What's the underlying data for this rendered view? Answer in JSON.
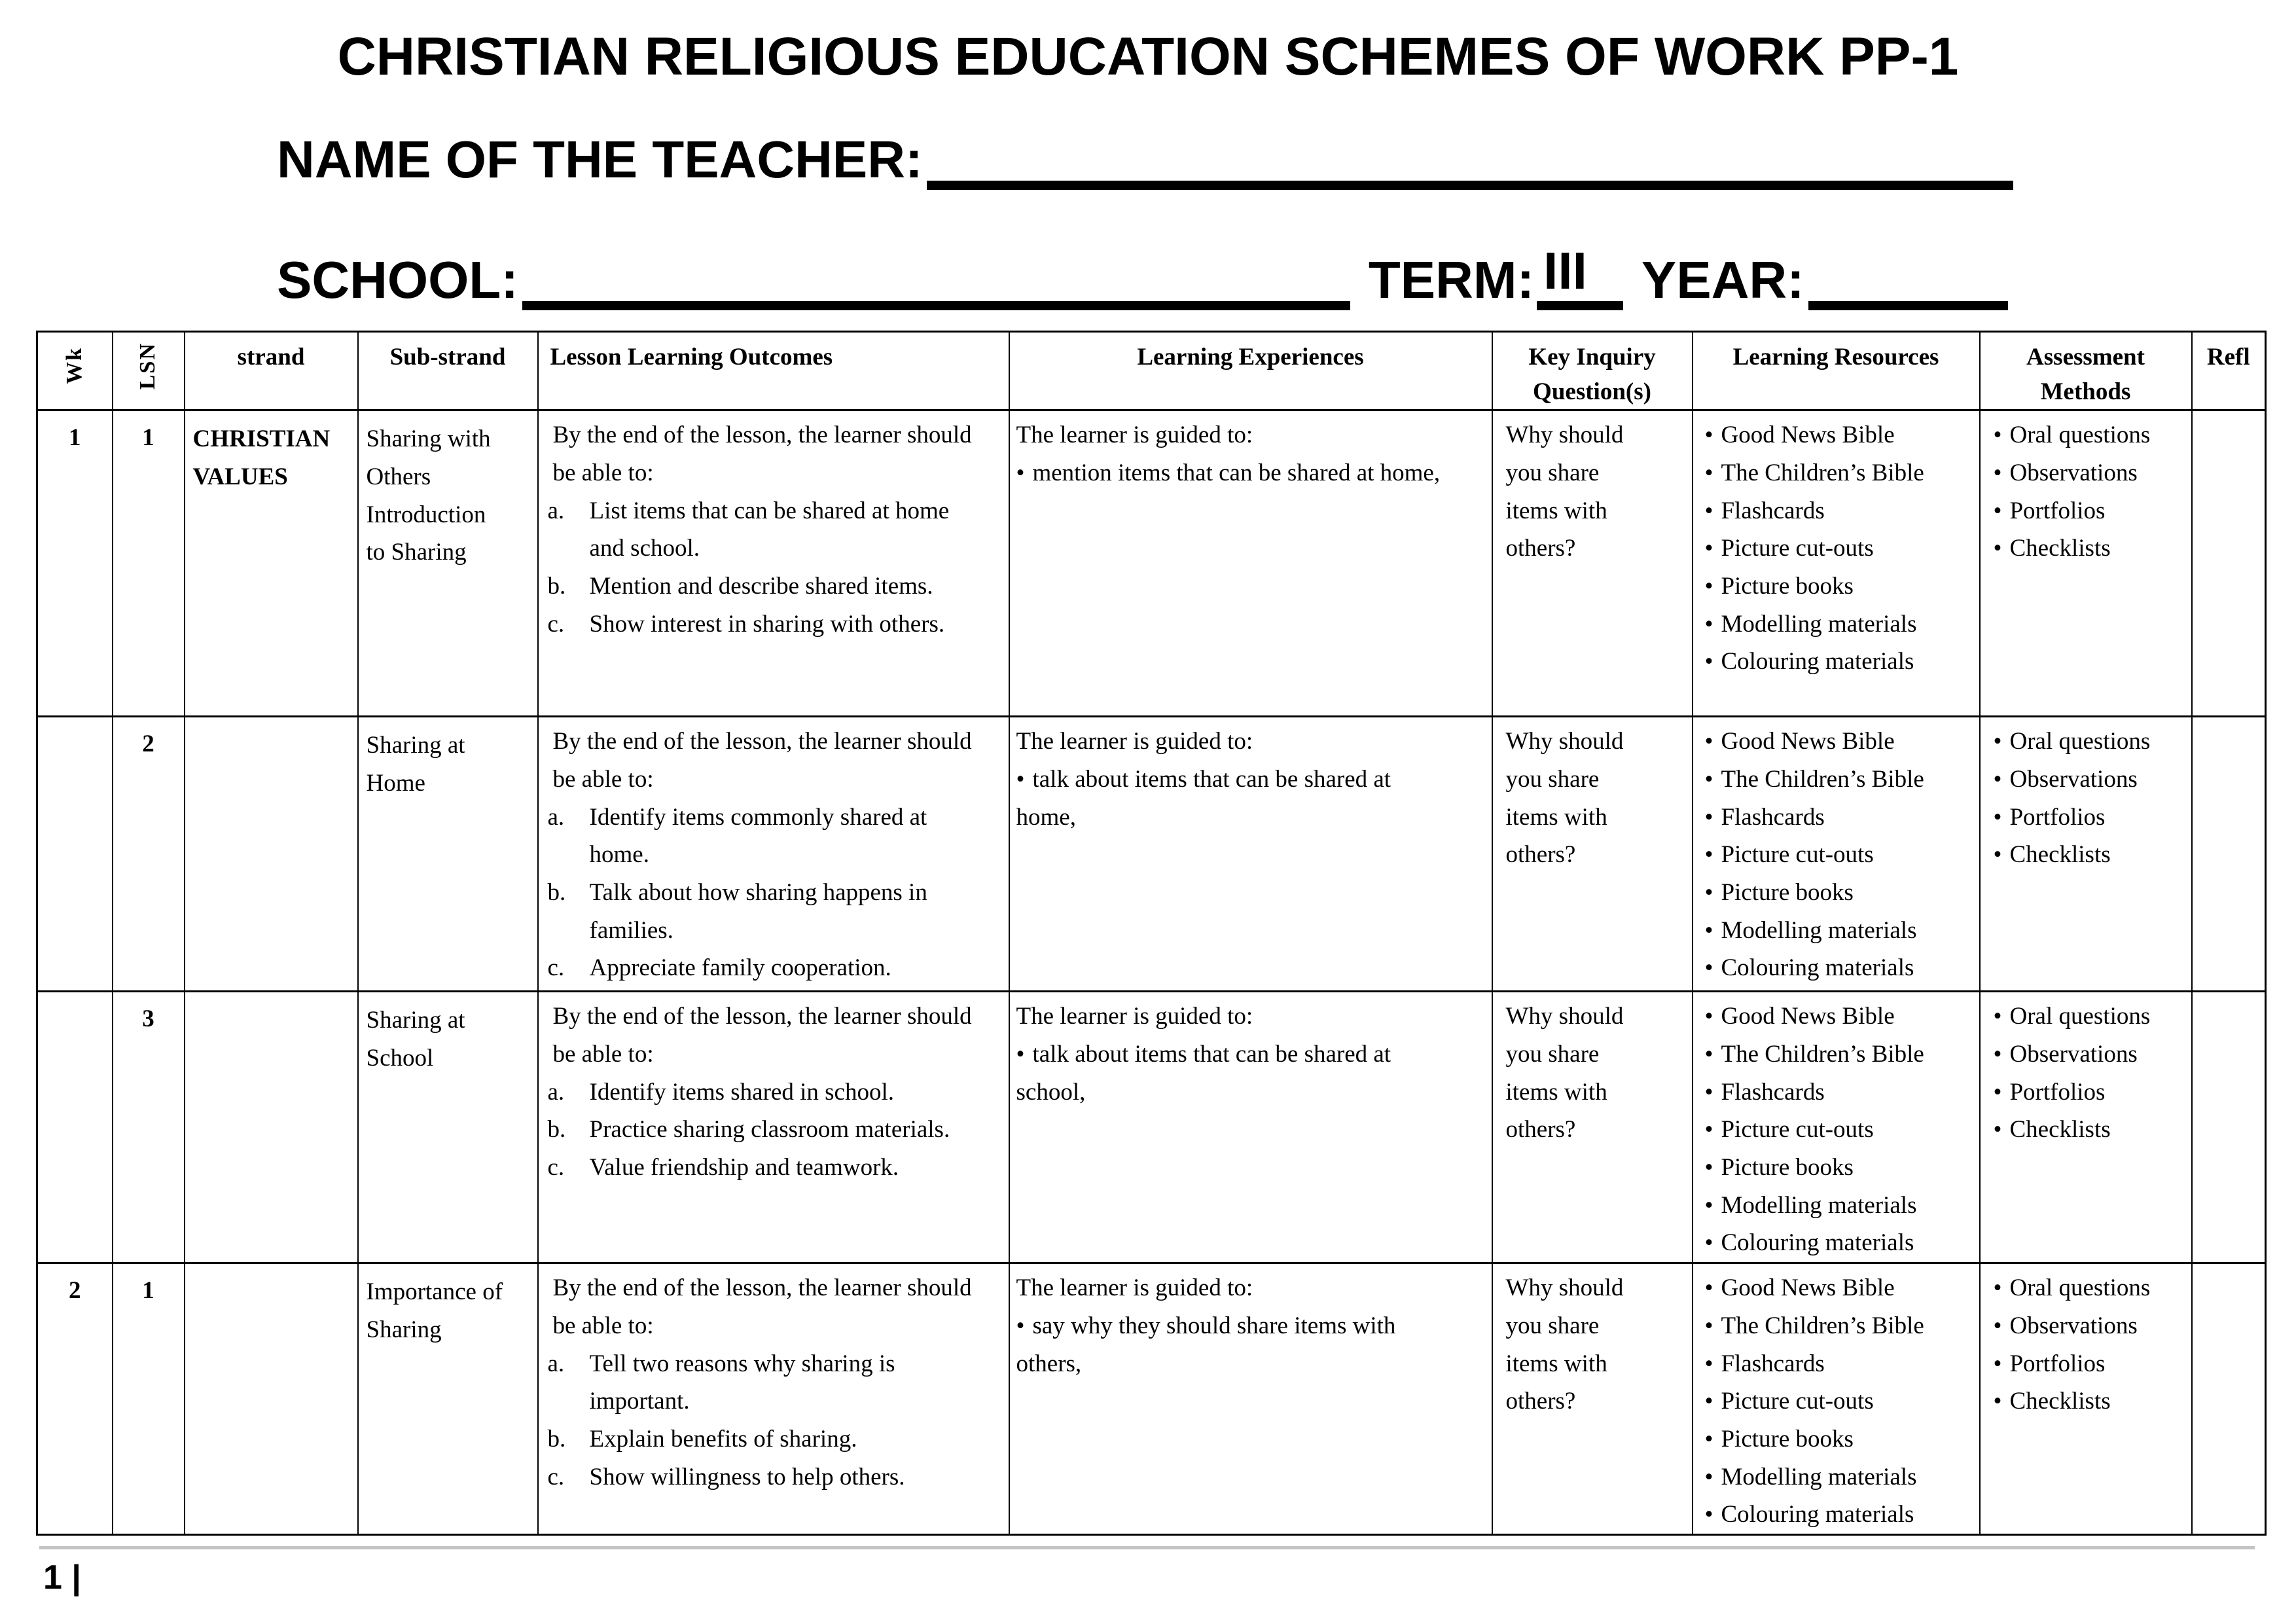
{
  "title": "CHRISTIAN RELIGIOUS EDUCATION SCHEMES OF WORK PP-1",
  "fields": {
    "teacher_label": "NAME OF THE TEACHER:",
    "school_label": "SCHOOL:",
    "term_label": "TERM:",
    "term_value": "III",
    "year_label": "YEAR:"
  },
  "footer": {
    "page_number": "1 |"
  },
  "table": {
    "headers": [
      "Wk",
      "LSN",
      "strand",
      "Sub-strand",
      "Lesson Learning Outcomes",
      "Learning Experiences",
      "Key Inquiry Question(s)",
      "Learning Resources",
      "Assessment Methods",
      "Refl"
    ],
    "rows": [
      {
        "wk": "1",
        "lsn": "1",
        "strand": "CHRISTIAN VALUES",
        "sub_strand": "Sharing with Others Introduction to Sharing",
        "outcomes_intro": "By the end of the lesson, the learner should be able to:",
        "outcomes": [
          {
            "m": "a.",
            "t": "List items that can be shared at home and school."
          },
          {
            "m": "b.",
            "t": "Mention and describe shared items."
          },
          {
            "m": "c.",
            "t": "Show interest in sharing with others."
          }
        ],
        "experiences_intro": "The learner is guided to:",
        "experiences": [
          {
            "m": "•",
            "t": "mention items that can be shared at home,"
          }
        ],
        "key_inquiry": "Why should you share items with others?",
        "resources": [
          {
            "m": "•",
            "t": "Good News Bible"
          },
          {
            "m": "•",
            "t": "The Children’s Bible"
          },
          {
            "m": "•",
            "t": "Flashcards"
          },
          {
            "m": "•",
            "t": "Picture cut-outs"
          },
          {
            "m": "•",
            "t": "Picture books"
          },
          {
            "m": "•",
            "t": "Modelling materials"
          },
          {
            "m": "•",
            "t": "Colouring materials"
          }
        ],
        "assessment": [
          {
            "m": "•",
            "t": "Oral questions"
          },
          {
            "m": "•",
            "t": "Observations"
          },
          {
            "m": "•",
            "t": "Portfolios"
          },
          {
            "m": "•",
            "t": "Checklists"
          }
        ],
        "refl": ""
      },
      {
        "wk": "",
        "lsn": "2",
        "strand": "",
        "sub_strand": "Sharing at Home",
        "outcomes_intro": "By the end of the lesson, the learner should be able to:",
        "outcomes": [
          {
            "m": "a.",
            "t": "Identify items commonly shared at home."
          },
          {
            "m": "b.",
            "t": "Talk about how sharing happens in families."
          },
          {
            "m": "c.",
            "t": "Appreciate family cooperation."
          }
        ],
        "experiences_intro": "The learner is guided to:",
        "experiences": [
          {
            "m": "•",
            "t": "talk about items that can be shared at home,"
          }
        ],
        "key_inquiry": "Why should you share items with others?",
        "resources": [
          {
            "m": "•",
            "t": "Good News Bible"
          },
          {
            "m": "•",
            "t": "The Children’s Bible"
          },
          {
            "m": "•",
            "t": "Flashcards"
          },
          {
            "m": "•",
            "t": "Picture cut-outs"
          },
          {
            "m": "•",
            "t": "Picture books"
          },
          {
            "m": "•",
            "t": "Modelling materials"
          },
          {
            "m": "•",
            "t": "Colouring materials"
          }
        ],
        "assessment": [
          {
            "m": "•",
            "t": "Oral questions"
          },
          {
            "m": "•",
            "t": "Observations"
          },
          {
            "m": "•",
            "t": "Portfolios"
          },
          {
            "m": "•",
            "t": "Checklists"
          }
        ],
        "refl": ""
      },
      {
        "wk": "",
        "lsn": "3",
        "strand": "",
        "sub_strand": "Sharing at School",
        "outcomes_intro": "By the end of the lesson, the learner should be able to:",
        "outcomes": [
          {
            "m": "a.",
            "t": "Identify items shared in school."
          },
          {
            "m": "b.",
            "t": "Practice sharing classroom materials."
          },
          {
            "m": "c.",
            "t": "Value friendship and teamwork."
          }
        ],
        "experiences_intro": "The learner is guided to:",
        "experiences": [
          {
            "m": "•",
            "t": "talk about items that can be shared at school,"
          }
        ],
        "key_inquiry": "Why should you share items with others?",
        "resources": [
          {
            "m": "•",
            "t": "Good News Bible"
          },
          {
            "m": "•",
            "t": "The Children’s Bible"
          },
          {
            "m": "•",
            "t": "Flashcards"
          },
          {
            "m": "•",
            "t": "Picture cut-outs"
          },
          {
            "m": "•",
            "t": "Picture books"
          },
          {
            "m": "•",
            "t": "Modelling materials"
          },
          {
            "m": "•",
            "t": "Colouring materials"
          }
        ],
        "assessment": [
          {
            "m": "•",
            "t": "Oral questions"
          },
          {
            "m": "•",
            "t": "Observations"
          },
          {
            "m": "•",
            "t": "Portfolios"
          },
          {
            "m": "•",
            "t": "Checklists"
          }
        ],
        "refl": ""
      },
      {
        "wk": "2",
        "lsn": "1",
        "strand": "",
        "sub_strand": "Importance of Sharing",
        "outcomes_intro": "By the end of the lesson, the learner should be able to:",
        "outcomes": [
          {
            "m": "a.",
            "t": "Tell two reasons why sharing is important."
          },
          {
            "m": "b.",
            "t": "Explain benefits of sharing."
          },
          {
            "m": "c.",
            "t": "Show willingness to help others."
          }
        ],
        "experiences_intro": "The learner is guided to:",
        "experiences": [
          {
            "m": "•",
            "t": "say why they should share items with others,"
          }
        ],
        "key_inquiry": "Why should you share items with others?",
        "resources": [
          {
            "m": "•",
            "t": "Good News Bible"
          },
          {
            "m": "•",
            "t": "The Children’s Bible"
          },
          {
            "m": "•",
            "t": "Flashcards"
          },
          {
            "m": "•",
            "t": "Picture cut-outs"
          },
          {
            "m": "•",
            "t": "Picture books"
          },
          {
            "m": "•",
            "t": "Modelling materials"
          },
          {
            "m": "•",
            "t": "Colouring materials"
          }
        ],
        "assessment": [
          {
            "m": "•",
            "t": "Oral questions"
          },
          {
            "m": "•",
            "t": "Observations"
          },
          {
            "m": "•",
            "t": "Portfolios"
          },
          {
            "m": "•",
            "t": "Checklists"
          }
        ],
        "refl": ""
      }
    ]
  }
}
